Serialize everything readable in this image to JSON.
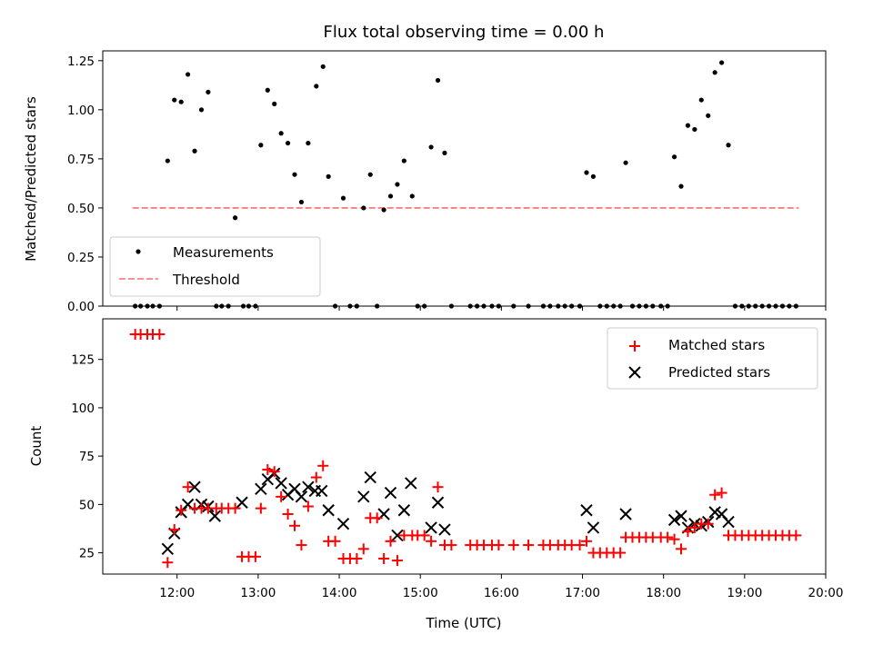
{
  "chart_data": [
    {
      "type": "scatter",
      "title": "Flux total observing time = 0.00 h",
      "xlabel": "",
      "ylabel": "Matched/Predicted stars",
      "xlim": [
        "11:05",
        "20:00"
      ],
      "ylim": [
        0,
        1.3
      ],
      "yticks": [
        "0.00",
        "0.25",
        "0.50",
        "0.75",
        "1.00",
        "1.25"
      ],
      "legend": {
        "position": "lower-left",
        "entries": [
          "Measurements",
          "Threshold"
        ]
      },
      "colors": {
        "measurements": "#000000",
        "threshold": "#ff8080"
      },
      "series": [
        {
          "name": "Measurements",
          "style": "dots",
          "points": [
            [
              "11:29",
              0
            ],
            [
              "11:33",
              0
            ],
            [
              "11:38",
              0
            ],
            [
              "11:42",
              0
            ],
            [
              "11:47",
              0
            ],
            [
              "11:53",
              0.74
            ],
            [
              "11:58",
              1.05
            ],
            [
              "12:03",
              1.04
            ],
            [
              "12:08",
              1.18
            ],
            [
              "12:13",
              0.79
            ],
            [
              "12:18",
              1.0
            ],
            [
              "12:23",
              1.09
            ],
            [
              "12:29",
              0
            ],
            [
              "12:33",
              0
            ],
            [
              "12:38",
              0
            ],
            [
              "12:43",
              0.45
            ],
            [
              "12:49",
              0
            ],
            [
              "12:53",
              0
            ],
            [
              "12:58",
              0
            ],
            [
              "13:02",
              0.82
            ],
            [
              "13:07",
              1.1
            ],
            [
              "13:12",
              1.03
            ],
            [
              "13:17",
              0.88
            ],
            [
              "13:22",
              0.83
            ],
            [
              "13:27",
              0.67
            ],
            [
              "13:32",
              0.53
            ],
            [
              "13:37",
              0.83
            ],
            [
              "13:43",
              1.12
            ],
            [
              "13:48",
              1.22
            ],
            [
              "13:52",
              0.66
            ],
            [
              "13:57",
              0
            ],
            [
              "14:03",
              0.55
            ],
            [
              "14:08",
              0
            ],
            [
              "14:13",
              0
            ],
            [
              "14:18",
              0.5
            ],
            [
              "14:23",
              0.67
            ],
            [
              "14:28",
              0
            ],
            [
              "14:33",
              0.49
            ],
            [
              "14:38",
              0.56
            ],
            [
              "14:43",
              0.62
            ],
            [
              "14:48",
              0.74
            ],
            [
              "14:54",
              0.56
            ],
            [
              "14:58",
              0
            ],
            [
              "15:03",
              0
            ],
            [
              "15:08",
              0.81
            ],
            [
              "15:13",
              1.15
            ],
            [
              "15:18",
              0.78
            ],
            [
              "15:23",
              0
            ],
            [
              "15:37",
              0
            ],
            [
              "15:42",
              0
            ],
            [
              "15:47",
              0
            ],
            [
              "15:53",
              0
            ],
            [
              "15:58",
              0
            ],
            [
              "16:09",
              0
            ],
            [
              "16:20",
              0
            ],
            [
              "16:31",
              0
            ],
            [
              "16:36",
              0
            ],
            [
              "16:42",
              0
            ],
            [
              "16:47",
              0
            ],
            [
              "16:52",
              0
            ],
            [
              "16:58",
              0
            ],
            [
              "17:03",
              0.68
            ],
            [
              "17:08",
              0.66
            ],
            [
              "17:13",
              0
            ],
            [
              "17:18",
              0
            ],
            [
              "17:23",
              0
            ],
            [
              "17:28",
              0
            ],
            [
              "17:32",
              0.73
            ],
            [
              "17:37",
              0
            ],
            [
              "17:42",
              0
            ],
            [
              "17:47",
              0
            ],
            [
              "17:52",
              0
            ],
            [
              "17:58",
              0
            ],
            [
              "18:03",
              0
            ],
            [
              "18:08",
              0.76
            ],
            [
              "18:13",
              0.61
            ],
            [
              "18:18",
              0.92
            ],
            [
              "18:23",
              0.9
            ],
            [
              "18:28",
              1.05
            ],
            [
              "18:33",
              0.97
            ],
            [
              "18:38",
              1.19
            ],
            [
              "18:43",
              1.24
            ],
            [
              "18:48",
              0.82
            ],
            [
              "18:53",
              0
            ],
            [
              "18:58",
              0
            ],
            [
              "19:03",
              0
            ],
            [
              "19:08",
              0
            ],
            [
              "19:13",
              0
            ],
            [
              "19:18",
              0
            ],
            [
              "19:23",
              0
            ],
            [
              "19:28",
              0
            ],
            [
              "19:33",
              0
            ],
            [
              "19:38",
              0
            ]
          ]
        },
        {
          "name": "Threshold",
          "style": "dashed-line",
          "points": [
            [
              "11:27",
              0.5
            ],
            [
              "19:40",
              0.5
            ]
          ]
        }
      ]
    },
    {
      "type": "scatter",
      "title": "",
      "xlabel": "Time (UTC)",
      "ylabel": "Count",
      "xlim": [
        "11:05",
        "20:00"
      ],
      "ylim": [
        14,
        146
      ],
      "yticks": [
        "25",
        "50",
        "75",
        "100",
        "125"
      ],
      "xticks": [
        "12:00",
        "13:00",
        "14:00",
        "15:00",
        "16:00",
        "17:00",
        "18:00",
        "19:00",
        "20:00"
      ],
      "legend": {
        "position": "top-right",
        "entries": [
          "Matched stars",
          "Predicted stars"
        ]
      },
      "colors": {
        "matched": "#ff0000",
        "predicted": "#000000"
      },
      "series": [
        {
          "name": "Matched stars",
          "marker": "+",
          "points": [
            [
              "11:29",
              138
            ],
            [
              "11:33",
              138
            ],
            [
              "11:38",
              138
            ],
            [
              "11:42",
              138
            ],
            [
              "11:47",
              138
            ],
            [
              "11:53",
              20
            ],
            [
              "11:58",
              37
            ],
            [
              "12:03",
              47
            ],
            [
              "12:08",
              59
            ],
            [
              "12:13",
              48
            ],
            [
              "12:18",
              48
            ],
            [
              "12:23",
              48
            ],
            [
              "12:29",
              48
            ],
            [
              "12:33",
              48
            ],
            [
              "12:38",
              48
            ],
            [
              "12:43",
              48
            ],
            [
              "12:48",
              23
            ],
            [
              "12:53",
              23
            ],
            [
              "12:58",
              23
            ],
            [
              "13:02",
              48
            ],
            [
              "13:07",
              68
            ],
            [
              "13:12",
              67
            ],
            [
              "13:17",
              54
            ],
            [
              "13:22",
              45
            ],
            [
              "13:27",
              39
            ],
            [
              "13:32",
              29
            ],
            [
              "13:37",
              49
            ],
            [
              "13:43",
              64
            ],
            [
              "13:48",
              70
            ],
            [
              "13:52",
              31
            ],
            [
              "13:57",
              31
            ],
            [
              "14:03",
              22
            ],
            [
              "14:08",
              22
            ],
            [
              "14:13",
              22
            ],
            [
              "14:18",
              27
            ],
            [
              "14:23",
              43
            ],
            [
              "14:28",
              43
            ],
            [
              "14:33",
              22
            ],
            [
              "14:38",
              31
            ],
            [
              "14:43",
              21
            ],
            [
              "14:48",
              34
            ],
            [
              "14:54",
              34
            ],
            [
              "14:58",
              34
            ],
            [
              "15:03",
              34
            ],
            [
              "15:08",
              31
            ],
            [
              "15:13",
              59
            ],
            [
              "15:18",
              29
            ],
            [
              "15:23",
              29
            ],
            [
              "15:37",
              29
            ],
            [
              "15:42",
              29
            ],
            [
              "15:47",
              29
            ],
            [
              "15:53",
              29
            ],
            [
              "15:58",
              29
            ],
            [
              "16:09",
              29
            ],
            [
              "16:20",
              29
            ],
            [
              "16:31",
              29
            ],
            [
              "16:36",
              29
            ],
            [
              "16:42",
              29
            ],
            [
              "16:47",
              29
            ],
            [
              "16:52",
              29
            ],
            [
              "16:58",
              29
            ],
            [
              "17:03",
              31
            ],
            [
              "17:08",
              25
            ],
            [
              "17:13",
              25
            ],
            [
              "17:18",
              25
            ],
            [
              "17:23",
              25
            ],
            [
              "17:28",
              25
            ],
            [
              "17:32",
              33
            ],
            [
              "17:37",
              33
            ],
            [
              "17:42",
              33
            ],
            [
              "17:47",
              33
            ],
            [
              "17:52",
              33
            ],
            [
              "17:58",
              33
            ],
            [
              "18:03",
              33
            ],
            [
              "18:08",
              32
            ],
            [
              "18:13",
              27
            ],
            [
              "18:18",
              36
            ],
            [
              "18:23",
              38
            ],
            [
              "18:28",
              40
            ],
            [
              "18:33",
              40
            ],
            [
              "18:38",
              55
            ],
            [
              "18:43",
              56
            ],
            [
              "18:48",
              34
            ],
            [
              "18:53",
              34
            ],
            [
              "18:58",
              34
            ],
            [
              "19:03",
              34
            ],
            [
              "19:08",
              34
            ],
            [
              "19:13",
              34
            ],
            [
              "19:18",
              34
            ],
            [
              "19:23",
              34
            ],
            [
              "19:28",
              34
            ],
            [
              "19:33",
              34
            ],
            [
              "19:38",
              34
            ]
          ]
        },
        {
          "name": "Predicted stars",
          "marker": "x",
          "points": [
            [
              "11:53",
              27
            ],
            [
              "11:58",
              35
            ],
            [
              "12:03",
              46
            ],
            [
              "12:08",
              50
            ],
            [
              "12:13",
              59
            ],
            [
              "12:18",
              50
            ],
            [
              "12:23",
              49
            ],
            [
              "12:28",
              44
            ],
            [
              "12:48",
              51
            ],
            [
              "13:02",
              58
            ],
            [
              "13:07",
              63
            ],
            [
              "13:12",
              66
            ],
            [
              "13:17",
              61
            ],
            [
              "13:22",
              55
            ],
            [
              "13:27",
              58
            ],
            [
              "13:32",
              54
            ],
            [
              "13:37",
              59
            ],
            [
              "13:42",
              57
            ],
            [
              "13:47",
              57
            ],
            [
              "13:52",
              47
            ],
            [
              "14:03",
              40
            ],
            [
              "14:18",
              54
            ],
            [
              "14:23",
              64
            ],
            [
              "14:33",
              45
            ],
            [
              "14:38",
              56
            ],
            [
              "14:43",
              34
            ],
            [
              "14:48",
              47
            ],
            [
              "14:53",
              61
            ],
            [
              "15:08",
              38
            ],
            [
              "15:13",
              51
            ],
            [
              "15:18",
              37
            ],
            [
              "17:03",
              47
            ],
            [
              "17:08",
              38
            ],
            [
              "17:32",
              45
            ],
            [
              "18:08",
              42
            ],
            [
              "18:13",
              44
            ],
            [
              "18:18",
              38
            ],
            [
              "18:23",
              40
            ],
            [
              "18:28",
              39
            ],
            [
              "18:33",
              41
            ],
            [
              "18:38",
              46
            ],
            [
              "18:43",
              45
            ],
            [
              "18:48",
              41
            ]
          ]
        }
      ]
    }
  ]
}
